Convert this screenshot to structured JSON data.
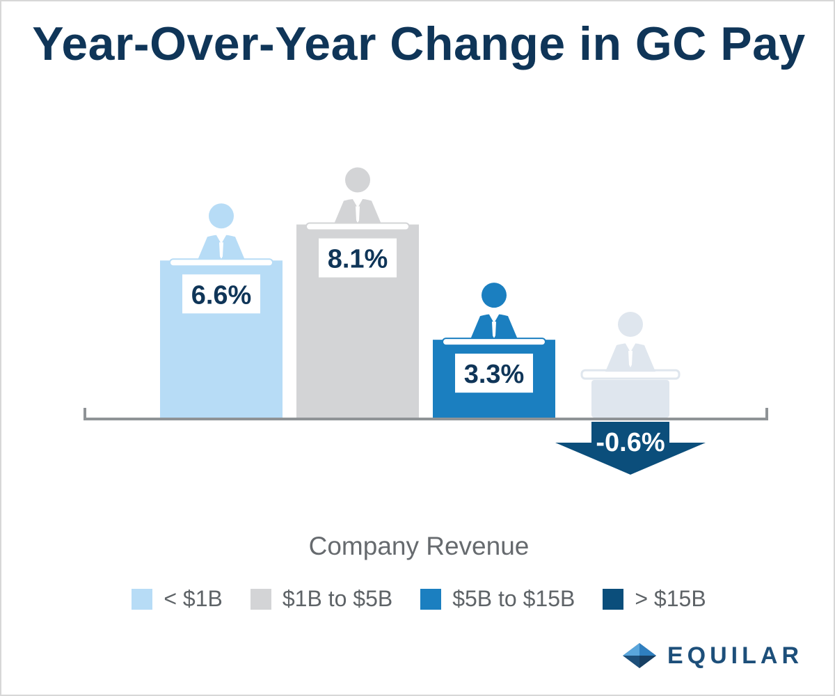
{
  "title": "Year-Over-Year Change in GC Pay",
  "chart_data": {
    "type": "bar",
    "categories": [
      "< $1B",
      "$1B to $5B",
      "$5B to $15B",
      "> $15B"
    ],
    "values": [
      6.6,
      8.1,
      3.3,
      -0.6
    ],
    "value_labels": [
      "6.6%",
      "8.1%",
      "3.3%",
      "-0.6%"
    ],
    "colors": [
      "#b7dcf6",
      "#d3d4d6",
      "#1b7fc0",
      "#0b4e7b"
    ],
    "xlabel": "Company Revenue",
    "ylabel": "",
    "ylim": [
      -1.5,
      10
    ],
    "grid": false,
    "legend_position": "bottom"
  },
  "legend": [
    {
      "label": "< $1B",
      "color": "#b7dcf6"
    },
    {
      "label": "$1B to $5B",
      "color": "#d3d4d6"
    },
    {
      "label": "$5B to $15B",
      "color": "#1b7fc0"
    },
    {
      "label": "> $15B",
      "color": "#0b4e7b"
    }
  ],
  "colors": {
    "title": "#0f3558",
    "axis": "#8f9396",
    "label_text": "#0f3558",
    "podium_figure_neg": "#dfe6ee",
    "negative_arrow": "#0b4e7b"
  },
  "brand": {
    "name": "EQUILAR",
    "icon": "equilar-diamond-logo"
  }
}
